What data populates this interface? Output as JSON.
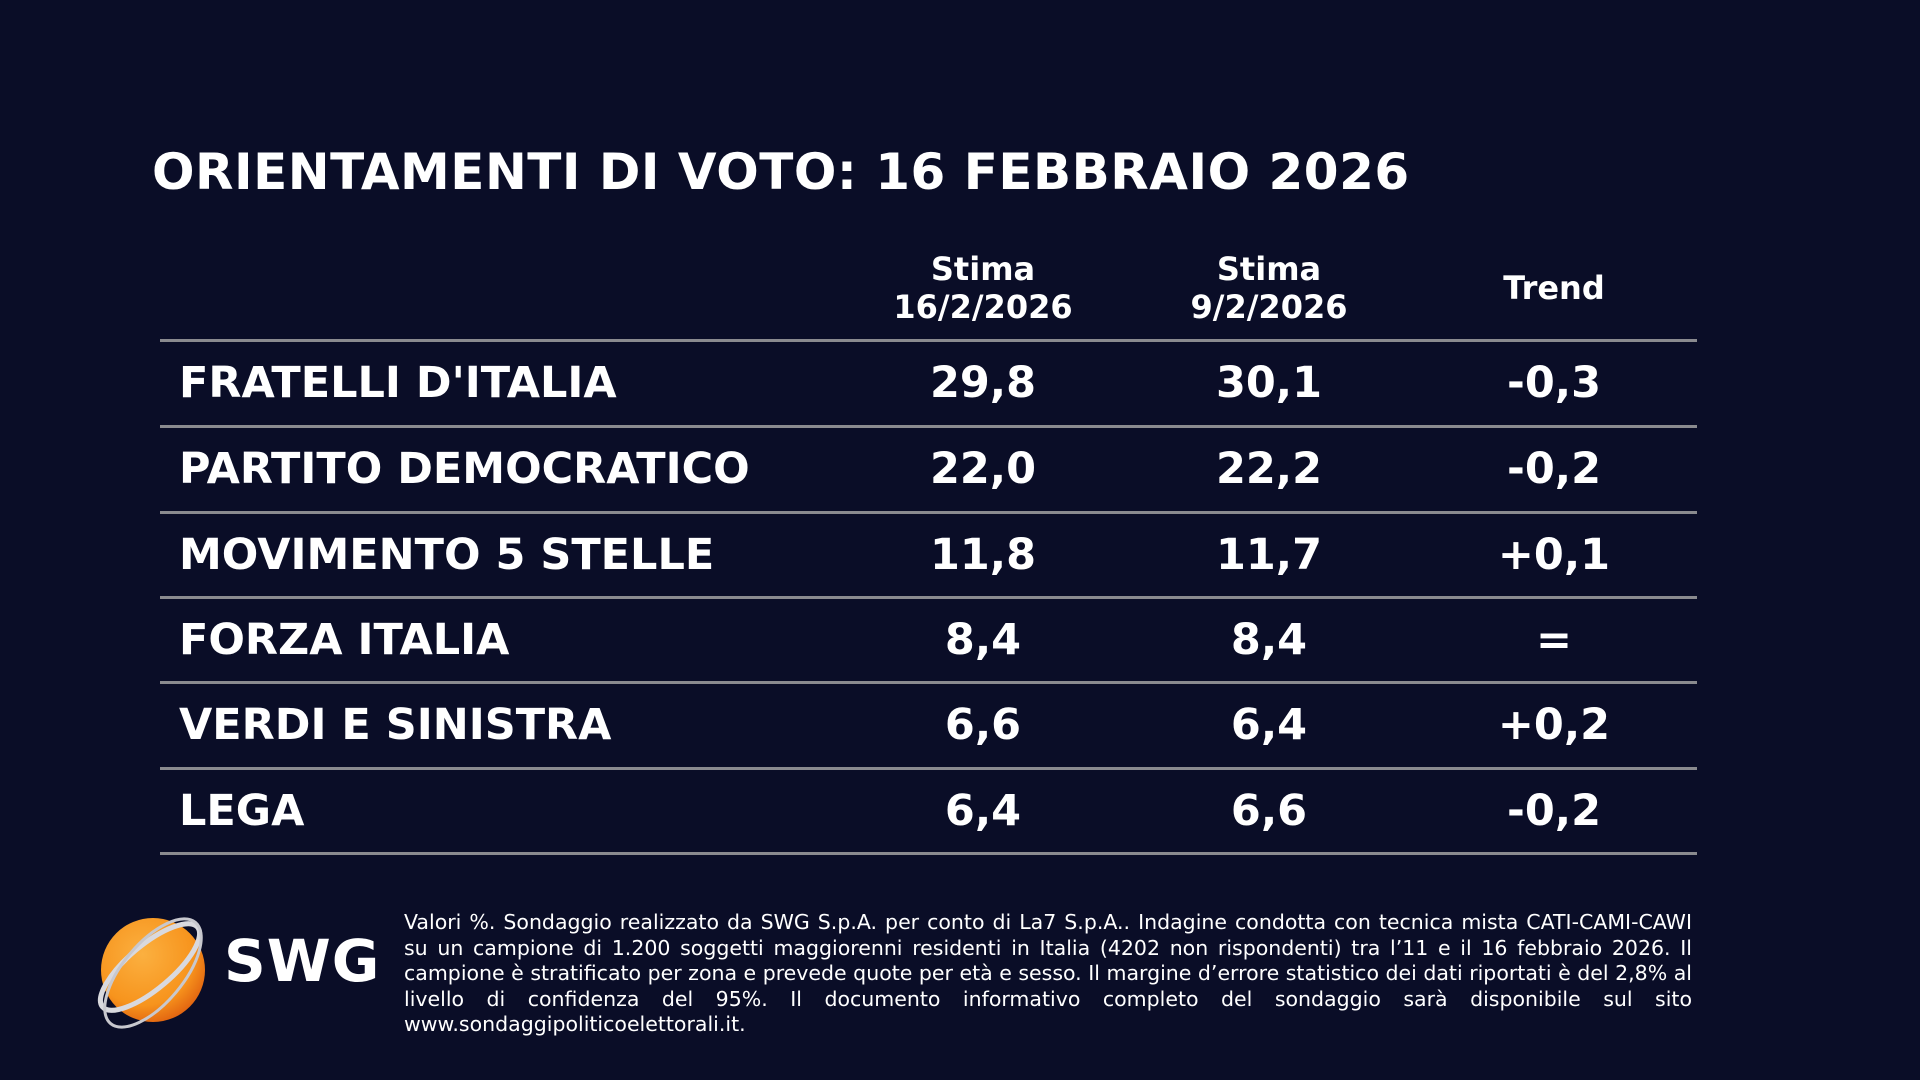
{
  "title": "ORIENTAMENTI DI VOTO: 16 FEBBRAIO 2026",
  "headers": [
    {
      "line1": "Stima",
      "line2": "16/2/2026"
    },
    {
      "line1": "Stima",
      "line2": "9/2/2026"
    },
    {
      "line1": "Trend",
      "line2": ""
    }
  ],
  "rows": [
    {
      "party": "FRATELLI D'ITALIA",
      "current": "29,8",
      "previous": "30,1",
      "trend": "-0,3"
    },
    {
      "party": "PARTITO DEMOCRATICO",
      "current": "22,0",
      "previous": "22,2",
      "trend": "-0,2"
    },
    {
      "party": "MOVIMENTO 5 STELLE",
      "current": "11,8",
      "previous": "11,7",
      "trend": "+0,1"
    },
    {
      "party": "FORZA ITALIA",
      "current": "8,4",
      "previous": "8,4",
      "trend": "="
    },
    {
      "party": "VERDI E SINISTRA",
      "current": "6,6",
      "previous": "6,4",
      "trend": "+0,2"
    },
    {
      "party": "LEGA",
      "current": "6,4",
      "previous": "6,6",
      "trend": "-0,2"
    }
  ],
  "logo": {
    "text": "SWG",
    "accent": "#f7941d"
  },
  "footnote": "Valori %. Sondaggio realizzato da SWG S.p.A. per conto di La7 S.p.A.. Indagine condotta con tecnica mista CATI-CAMI-CAWI su un campione di 1.200 soggetti maggiorenni residenti in Italia (4202 non rispondenti) tra l’11 e il 16 febbraio 2026. Il campione è stratificato per zona e prevede quote per età e sesso. Il margine d’errore statistico dei dati riportati è del 2,8% al livello di confidenza del 95%. Il documento informativo completo del sondaggio sarà disponibile sul sito www.sondaggipoliticoelettorali.it."
}
